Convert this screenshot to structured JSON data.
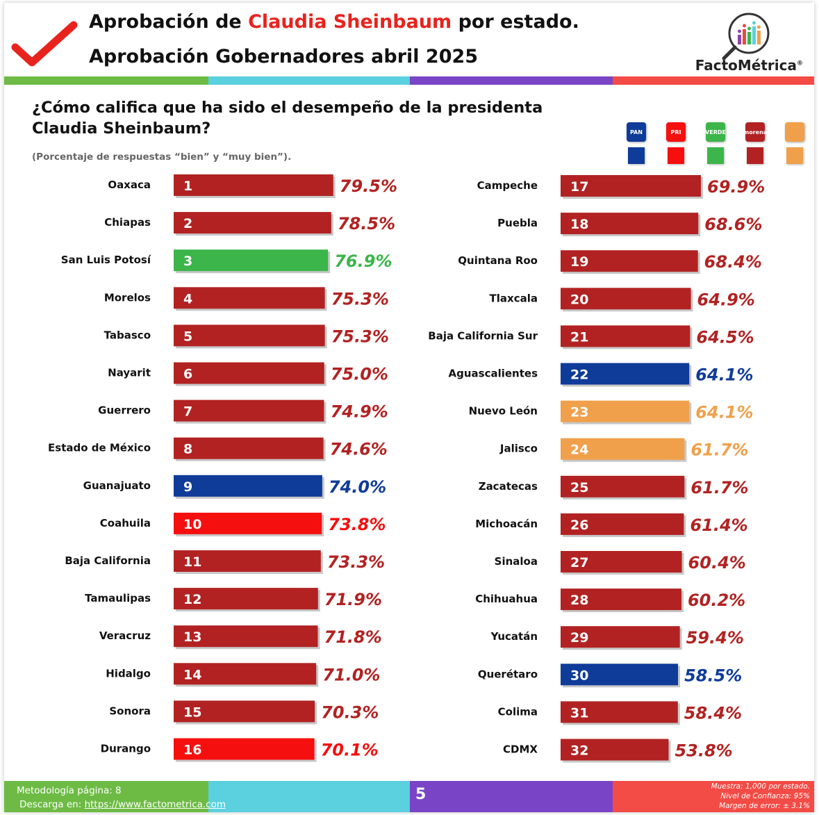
{
  "header": {
    "title_prefix": "Aprobación de ",
    "title_highlight": "Claudia Sheinbaum",
    "title_suffix": " por estado.",
    "subtitle": "Aprobación Gobernadores abril 2025",
    "brand": "FactoMétrica",
    "brand_mark": "®"
  },
  "question": "¿Cómo califica que ha sido el desempeño de la presidenta Claudia Sheinbaum?",
  "note": "(Porcentaje de respuestas “bien” y “muy bien”).",
  "colors": {
    "morena": "#b22222",
    "verde": "#3cb54a",
    "pan": "#0f3b99",
    "pri": "#f50f0f",
    "mc": "#f0a04b",
    "stripe_green": "#6dbb45",
    "stripe_cyan": "#5bd0df",
    "stripe_purple": "#7a44c6",
    "stripe_red": "#f34b45"
  },
  "parties": [
    {
      "icon": "pan-logo-icon",
      "label": "PAN",
      "color": "#0f3b99"
    },
    {
      "icon": "pri-logo-icon",
      "label": "PRI",
      "color": "#f50f0f"
    },
    {
      "icon": "verde-logo-icon",
      "label": "VERDE",
      "color": "#3cb54a"
    },
    {
      "icon": "morena-logo-icon",
      "label": "morena",
      "color": "#b22222"
    },
    {
      "icon": "mc-logo-icon",
      "label": "",
      "color": "#f0a04b"
    }
  ],
  "chart_data": {
    "type": "bar",
    "orientation": "horizontal",
    "title": "",
    "xlabel": "",
    "ylabel": "",
    "value_suffix": "%",
    "xlim": [
      0,
      100
    ],
    "grid": false,
    "columns": [
      {
        "rows": [
          {
            "rank": 1,
            "state": "Oaxaca",
            "value": 79.5,
            "value_label": "79.5%",
            "party": "morena"
          },
          {
            "rank": 2,
            "state": "Chiapas",
            "value": 78.5,
            "value_label": "78.5%",
            "party": "morena"
          },
          {
            "rank": 3,
            "state": "San Luis Potosí",
            "value": 76.9,
            "value_label": "76.9%",
            "party": "verde"
          },
          {
            "rank": 4,
            "state": "Morelos",
            "value": 75.3,
            "value_label": "75.3%",
            "party": "morena"
          },
          {
            "rank": 5,
            "state": "Tabasco",
            "value": 75.3,
            "value_label": "75.3%",
            "party": "morena"
          },
          {
            "rank": 6,
            "state": "Nayarit",
            "value": 75.0,
            "value_label": "75.0%",
            "party": "morena"
          },
          {
            "rank": 7,
            "state": "Guerrero",
            "value": 74.9,
            "value_label": "74.9%",
            "party": "morena"
          },
          {
            "rank": 8,
            "state": "Estado de México",
            "value": 74.6,
            "value_label": "74.6%",
            "party": "morena"
          },
          {
            "rank": 9,
            "state": "Guanajuato",
            "value": 74.0,
            "value_label": "74.0%",
            "party": "pan"
          },
          {
            "rank": 10,
            "state": "Coahuila",
            "value": 73.8,
            "value_label": "73.8%",
            "party": "pri"
          },
          {
            "rank": 11,
            "state": "Baja California",
            "value": 73.3,
            "value_label": "73.3%",
            "party": "morena"
          },
          {
            "rank": 12,
            "state": "Tamaulipas",
            "value": 71.9,
            "value_label": "71.9%",
            "party": "morena"
          },
          {
            "rank": 13,
            "state": "Veracruz",
            "value": 71.8,
            "value_label": "71.8%",
            "party": "morena"
          },
          {
            "rank": 14,
            "state": "Hidalgo",
            "value": 71.0,
            "value_label": "71.0%",
            "party": "morena"
          },
          {
            "rank": 15,
            "state": "Sonora",
            "value": 70.3,
            "value_label": "70.3%",
            "party": "morena"
          },
          {
            "rank": 16,
            "state": "Durango",
            "value": 70.1,
            "value_label": "70.1%",
            "party": "pri"
          }
        ]
      },
      {
        "rows": [
          {
            "rank": 17,
            "state": "Campeche",
            "value": 69.9,
            "value_label": "69.9%",
            "party": "morena"
          },
          {
            "rank": 18,
            "state": "Puebla",
            "value": 68.6,
            "value_label": "68.6%",
            "party": "morena"
          },
          {
            "rank": 19,
            "state": "Quintana Roo",
            "value": 68.4,
            "value_label": "68.4%",
            "party": "morena"
          },
          {
            "rank": 20,
            "state": "Tlaxcala",
            "value": 64.9,
            "value_label": "64.9%",
            "party": "morena"
          },
          {
            "rank": 21,
            "state": "Baja California Sur",
            "value": 64.5,
            "value_label": "64.5%",
            "party": "morena"
          },
          {
            "rank": 22,
            "state": "Aguascalientes",
            "value": 64.1,
            "value_label": "64.1%",
            "party": "pan"
          },
          {
            "rank": 23,
            "state": "Nuevo León",
            "value": 64.1,
            "value_label": "64.1%",
            "party": "mc"
          },
          {
            "rank": 24,
            "state": "Jalisco",
            "value": 61.7,
            "value_label": "61.7%",
            "party": "mc"
          },
          {
            "rank": 25,
            "state": "Zacatecas",
            "value": 61.7,
            "value_label": "61.7%",
            "party": "morena"
          },
          {
            "rank": 26,
            "state": "Michoacán",
            "value": 61.4,
            "value_label": "61.4%",
            "party": "morena"
          },
          {
            "rank": 27,
            "state": "Sinaloa",
            "value": 60.4,
            "value_label": "60.4%",
            "party": "morena"
          },
          {
            "rank": 28,
            "state": "Chihuahua",
            "value": 60.2,
            "value_label": "60.2%",
            "party": "morena"
          },
          {
            "rank": 29,
            "state": "Yucatán",
            "value": 59.4,
            "value_label": "59.4%",
            "party": "morena"
          },
          {
            "rank": 30,
            "state": "Querétaro",
            "value": 58.5,
            "value_label": "58.5%",
            "party": "pan"
          },
          {
            "rank": 31,
            "state": "Colima",
            "value": 58.4,
            "value_label": "58.4%",
            "party": "morena"
          },
          {
            "rank": 32,
            "state": "CDMX",
            "value": 53.8,
            "value_label": "53.8%",
            "party": "morena"
          }
        ]
      }
    ]
  },
  "footer": {
    "methodology": "Metodología página: 8",
    "download_prefix": "Descarga en: ",
    "download_link": "https://www.factometrica.com",
    "page_number": "5",
    "sample": "Muestra:  1,000 por estado.",
    "confidence": "Nivel de Confianza: 95%",
    "error": "Margen de error: ± 3.1%"
  }
}
